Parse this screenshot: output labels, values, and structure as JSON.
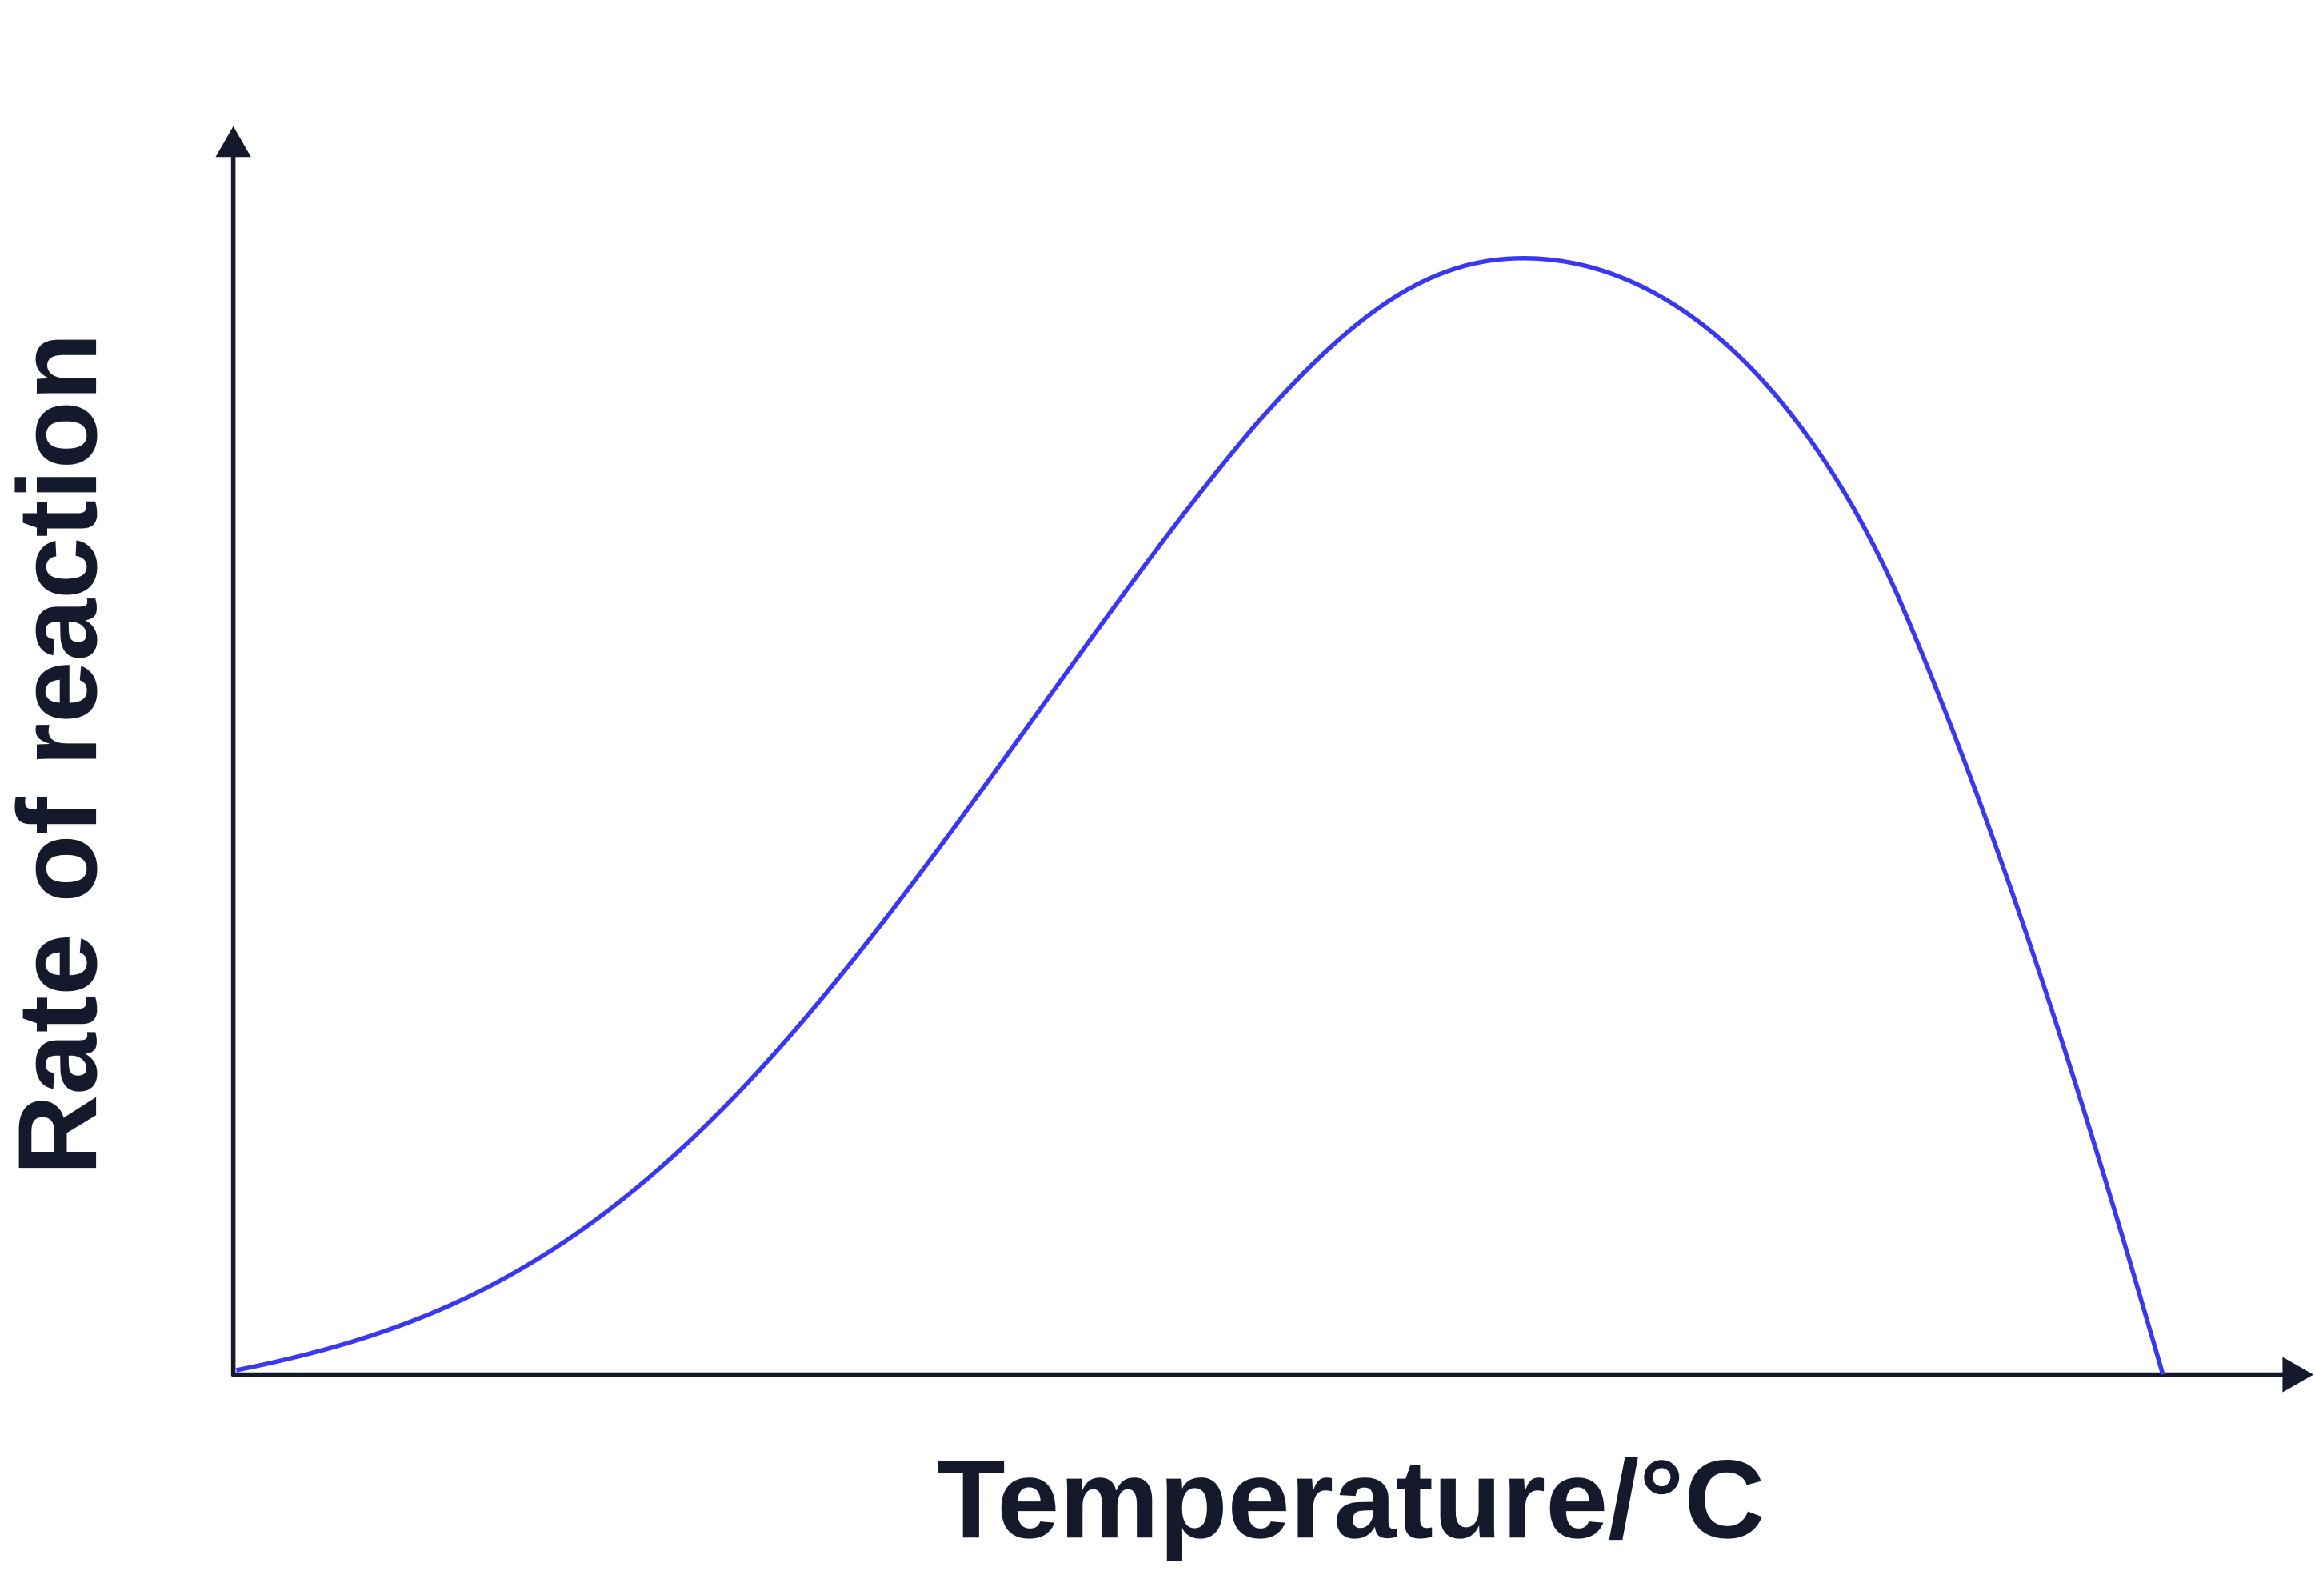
{
  "axes": {
    "x_label": "Temperature/°C",
    "y_label": "Rate of reaction"
  }
}
